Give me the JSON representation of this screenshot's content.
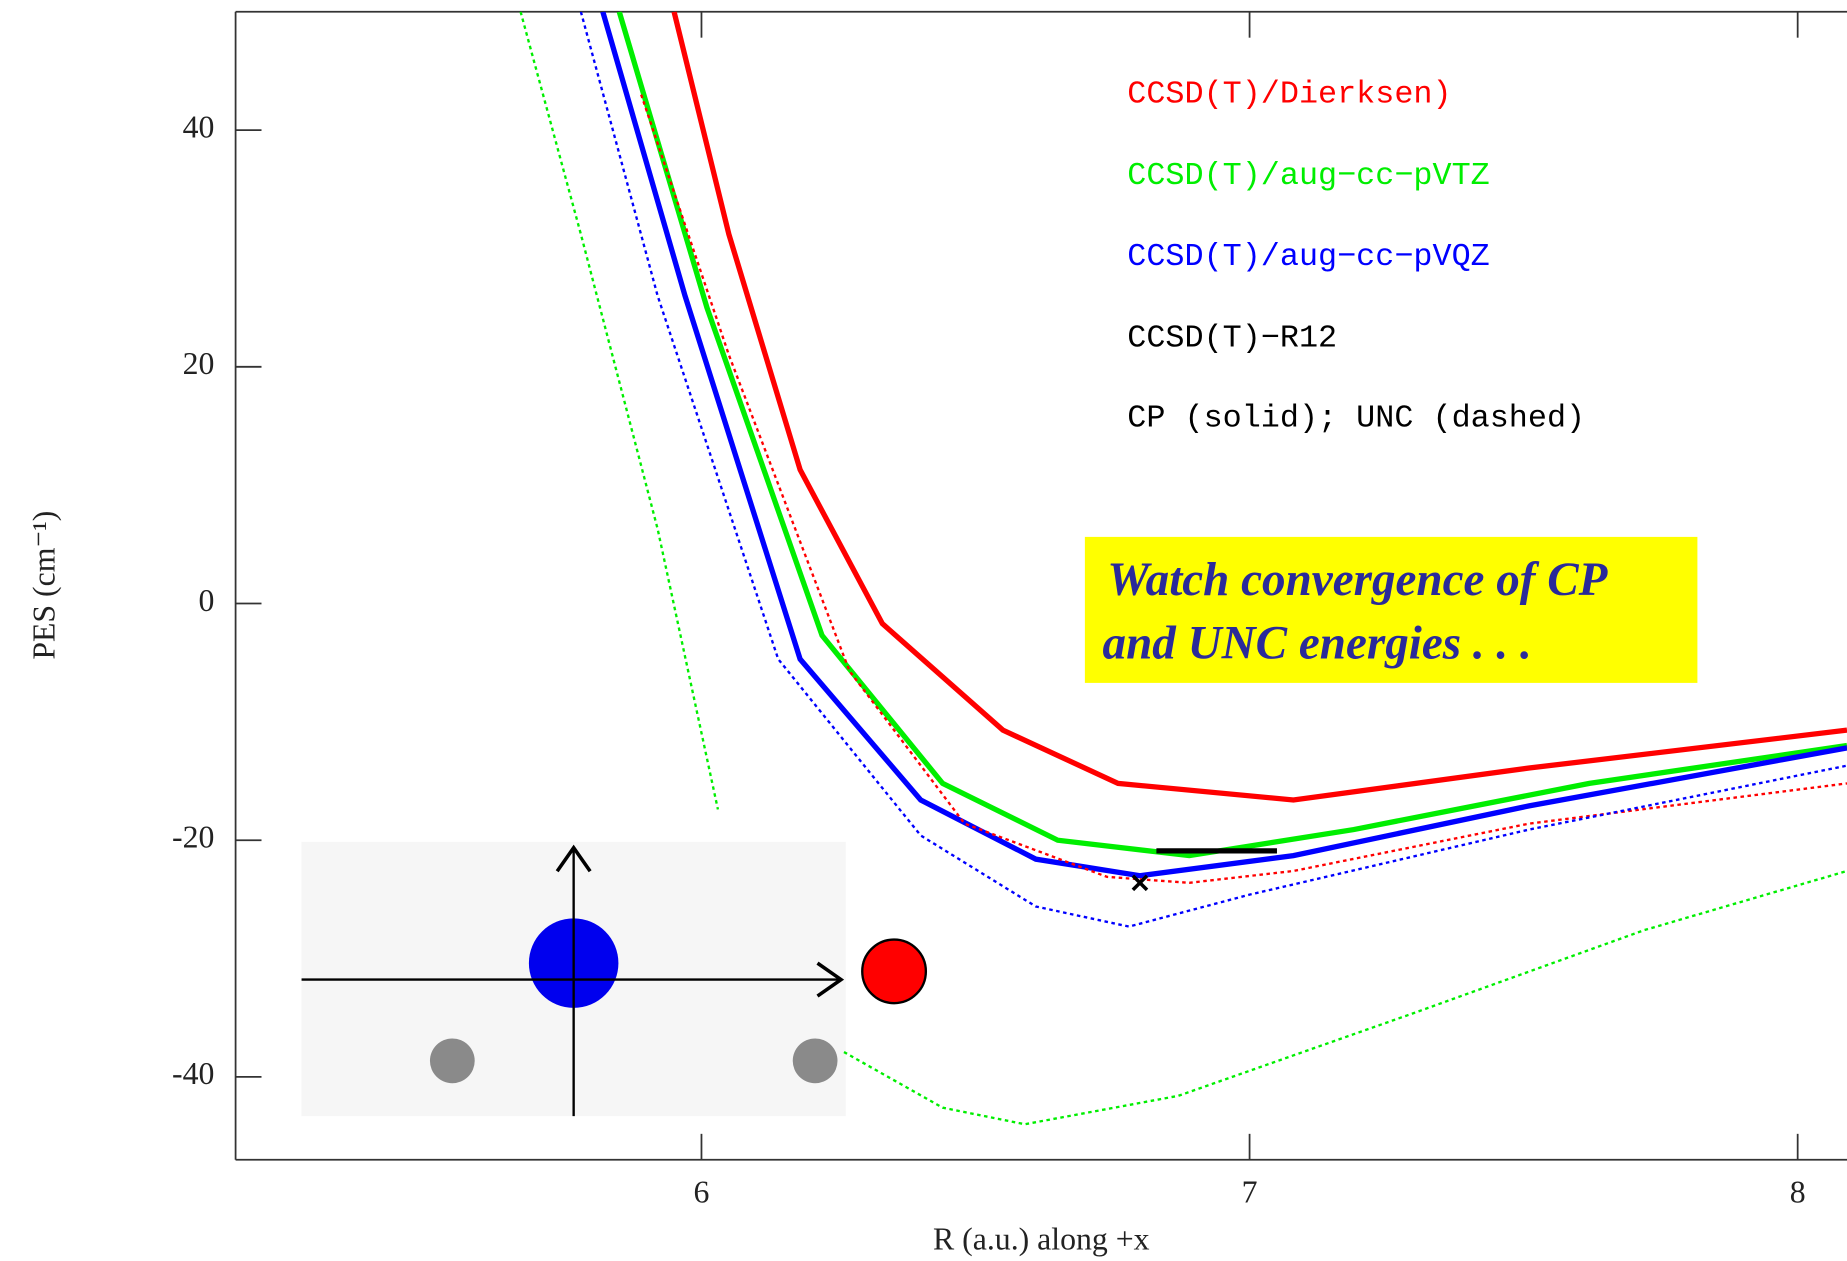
{
  "chart_data": {
    "type": "line",
    "xlabel": "R (a.u.) along +x",
    "ylabel": "PES (cm⁻¹)",
    "xlim": [
      5.15,
      8.09
    ],
    "ylim": [
      -47,
      50
    ],
    "xticks": [
      6,
      7,
      8
    ],
    "yticks": [
      -40,
      -20,
      0,
      20,
      40
    ],
    "series": [
      {
        "name": "CCSD(T)/Dierksen)",
        "color": "#ff0000",
        "style": "solid",
        "x": [
          5.95,
          6.05,
          6.18,
          6.33,
          6.55,
          6.76,
          7.08,
          7.51,
          8.09
        ],
        "values": [
          50,
          31.2,
          11.3,
          -1.7,
          -10.7,
          -15.2,
          -16.6,
          -13.9,
          -10.7
        ]
      },
      {
        "name": "CCSD(T)/aug−cc−pVTZ",
        "color": "#00ee00",
        "style": "solid",
        "x": [
          5.85,
          6.01,
          6.22,
          6.44,
          6.65,
          6.89,
          7.19,
          7.62,
          8.09
        ],
        "values": [
          50,
          25,
          -2.7,
          -15.2,
          -20,
          -21.3,
          -19.1,
          -15.2,
          -12
        ]
      },
      {
        "name": "CCSD(T)/aug−cc−pVQZ",
        "color": "#0000ff",
        "style": "solid",
        "x": [
          5.82,
          5.97,
          6.18,
          6.4,
          6.61,
          6.8,
          7.08,
          7.51,
          8.09
        ],
        "values": [
          50,
          26,
          -4.7,
          -16.6,
          -21.6,
          -23,
          -21.3,
          -17.1,
          -12.2
        ]
      },
      {
        "color": "#ff0000",
        "style": "dashed",
        "x": [
          5.89,
          6.05,
          6.27,
          6.48,
          6.74,
          6.89,
          7.08,
          7.51,
          8.09
        ],
        "values": [
          43,
          21,
          -5.7,
          -18.6,
          -23.1,
          -23.6,
          -22.6,
          -18.6,
          -15.2
        ]
      },
      {
        "color": "#0000ff",
        "style": "dashed",
        "x": [
          5.78,
          5.92,
          6.14,
          6.4,
          6.61,
          6.78,
          7.0,
          7.51,
          8.09
        ],
        "values": [
          50,
          26,
          -4.7,
          -19.6,
          -25.6,
          -27.3,
          -24.6,
          -19.1,
          -13.7
        ]
      },
      {
        "color": "#00ee00",
        "style": "dashed",
        "x": [
          5.67,
          5.78,
          5.92,
          6.03,
          6.1,
          6.26,
          6.44,
          6.59,
          6.87,
          7.3,
          7.72,
          8.09
        ],
        "values": [
          50,
          31.2,
          6.3,
          -17.4,
          null,
          -37.9,
          -42.6,
          -44,
          -41.6,
          -34.6,
          -27.6,
          -22.6
        ]
      },
      {
        "name": "CCSD(T)−R12",
        "color": "#000000",
        "style": "solid",
        "x": [
          6.83,
          7.05
        ],
        "values": [
          -20.9,
          -20.9
        ],
        "point": {
          "x": 6.8,
          "y": -23.6
        }
      }
    ],
    "note": "CP (solid); UNC (dashed)",
    "annotation": [
      "Watch convergence of CP",
      "and UNC energies . . ."
    ]
  }
}
